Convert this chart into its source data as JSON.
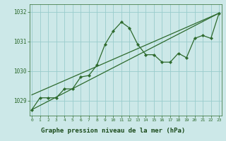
{
  "title": "Graphe pression niveau de la mer (hPa)",
  "x": [
    0,
    1,
    2,
    3,
    4,
    5,
    6,
    7,
    8,
    9,
    10,
    11,
    12,
    13,
    14,
    15,
    16,
    17,
    18,
    19,
    20,
    21,
    22,
    23
  ],
  "y_main": [
    1028.7,
    1029.1,
    1029.1,
    1029.1,
    1029.4,
    1029.4,
    1029.8,
    1029.85,
    1030.2,
    1030.9,
    1031.35,
    1031.65,
    1031.45,
    1030.9,
    1030.55,
    1030.55,
    1030.3,
    1030.3,
    1030.6,
    1030.45,
    1031.1,
    1031.2,
    1031.1,
    1031.95
  ],
  "xlim": [
    -0.3,
    23.3
  ],
  "ylim": [
    1028.5,
    1032.25
  ],
  "yticks": [
    1029,
    1030,
    1031,
    1032
  ],
  "xticks": [
    0,
    1,
    2,
    3,
    4,
    5,
    6,
    7,
    8,
    9,
    10,
    11,
    12,
    13,
    14,
    15,
    16,
    17,
    18,
    19,
    20,
    21,
    22,
    23
  ],
  "trend1_x": [
    0,
    23
  ],
  "trend1_y": [
    1028.7,
    1031.95
  ],
  "trend2_x": [
    0,
    23
  ],
  "trend2_y": [
    1029.2,
    1031.95
  ],
  "line_color": "#2d6a2d",
  "bg_color": "#cce8e8",
  "grid_color": "#99cccc",
  "title_bg_color": "#66aaaa",
  "title_color": "#1a4a1a",
  "tick_color": "#2d6a2d"
}
